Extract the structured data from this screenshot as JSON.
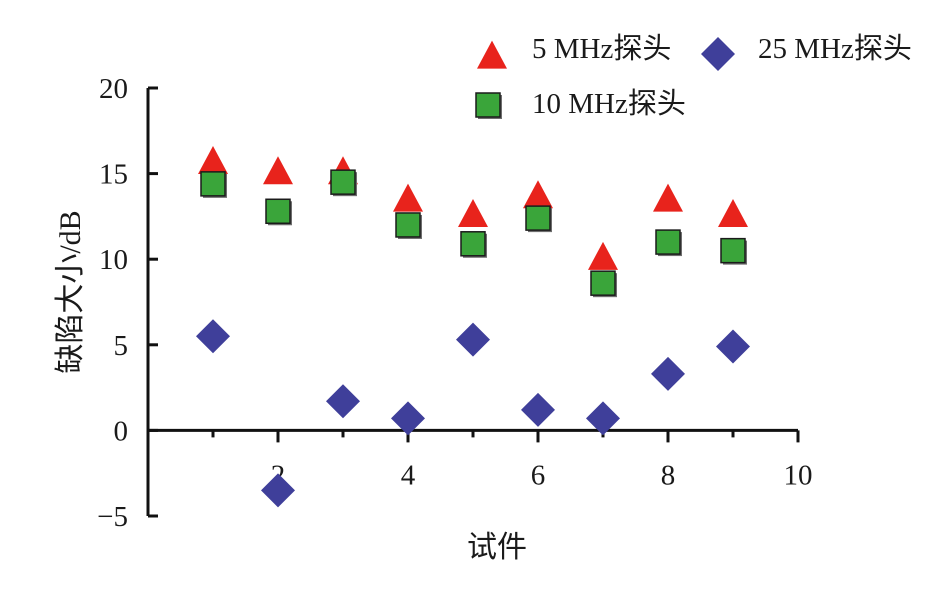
{
  "chart_data": {
    "type": "scatter",
    "title": "",
    "xlabel": "试件",
    "ylabel": "缺陷大小/dB",
    "xlim": [
      0,
      10
    ],
    "ylim": [
      -5,
      20
    ],
    "x_ticks": [
      2,
      4,
      6,
      8,
      10
    ],
    "y_ticks": [
      -5,
      0,
      5,
      10,
      15,
      20
    ],
    "grid": false,
    "legend_position": "top-right",
    "series": [
      {
        "name": "5 MHz探头",
        "marker": "triangle",
        "color": "#e8231c",
        "x": [
          1,
          2,
          3,
          4,
          5,
          6,
          7,
          8,
          9
        ],
        "y": [
          15.6,
          15.0,
          15.0,
          13.4,
          12.5,
          13.6,
          10.0,
          13.4,
          12.5
        ]
      },
      {
        "name": "25 MHz探头",
        "marker": "diamond",
        "color": "#3f3f9a",
        "x": [
          1,
          2,
          3,
          4,
          5,
          6,
          7,
          8,
          9
        ],
        "y": [
          5.5,
          -3.5,
          1.7,
          0.7,
          5.3,
          1.2,
          0.7,
          3.3,
          4.9
        ]
      },
      {
        "name": "10 MHz探头",
        "marker": "square",
        "color": "#3aa53a",
        "x": [
          1,
          2,
          3,
          4,
          5,
          6,
          7,
          8,
          9
        ],
        "y": [
          14.4,
          12.8,
          14.5,
          12.0,
          10.9,
          12.4,
          8.6,
          11.0,
          10.5
        ]
      }
    ]
  }
}
